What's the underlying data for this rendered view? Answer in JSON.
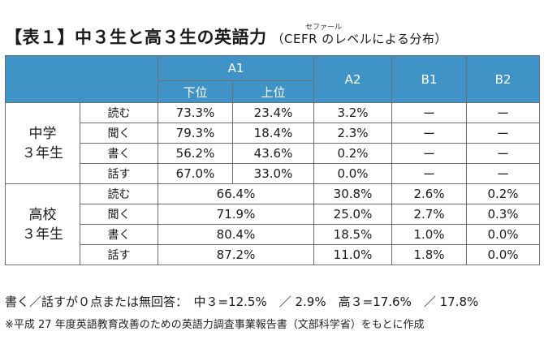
{
  "title": {
    "main": "【表１】中３生と高３生の英語力",
    "sub": "（CEFR のレベルによる分布）",
    "ruby": "セファール"
  },
  "table": {
    "headers": {
      "a1": "A1",
      "a1_low": "下位",
      "a1_high": "上位",
      "a2": "A2",
      "b1": "B1",
      "b2": "B2"
    },
    "groups": [
      {
        "label_line1": "中学",
        "label_line2": "３年生",
        "rows": [
          {
            "skill": "読む",
            "a1_low": "73.3%",
            "a1_high": "23.4%",
            "a2": "3.2%",
            "b1": "ー",
            "b2": "ー"
          },
          {
            "skill": "聞く",
            "a1_low": "79.3%",
            "a1_high": "18.4%",
            "a2": "2.3%",
            "b1": "ー",
            "b2": "ー"
          },
          {
            "skill": "書く",
            "a1_low": "56.2%",
            "a1_high": "43.6%",
            "a2": "0.2%",
            "b1": "ー",
            "b2": "ー"
          },
          {
            "skill": "話す",
            "a1_low": "67.0%",
            "a1_high": "33.0%",
            "a2": "0.0%",
            "b1": "ー",
            "b2": "ー"
          }
        ]
      },
      {
        "label_line1": "高校",
        "label_line2": "３年生",
        "rows": [
          {
            "skill": "読む",
            "a1": "66.4%",
            "a2": "30.8%",
            "b1": "2.6%",
            "b2": "0.2%"
          },
          {
            "skill": "聞く",
            "a1": "71.9%",
            "a2": "25.0%",
            "b1": "2.7%",
            "b2": "0.3%"
          },
          {
            "skill": "書く",
            "a1": "80.4%",
            "a2": "18.5%",
            "b1": "1.0%",
            "b2": "0.0%"
          },
          {
            "skill": "話す",
            "a1": "87.2%",
            "a2": "11.0%",
            "b1": "1.8%",
            "b2": "0.0%"
          }
        ]
      }
    ]
  },
  "notes": {
    "line1": "書く／話すが０点または無回答：　中３=12.5%　／ 2.9%　高３=17.6%　／ 17.8%",
    "line2": "※平成 27 年度英語教育改善のための英語力調査事業報告書（文部科学省）をもとに作成"
  },
  "colors": {
    "header_bg": "#3f93c6",
    "header_text": "#ffffff",
    "border": "#6a6f74"
  }
}
